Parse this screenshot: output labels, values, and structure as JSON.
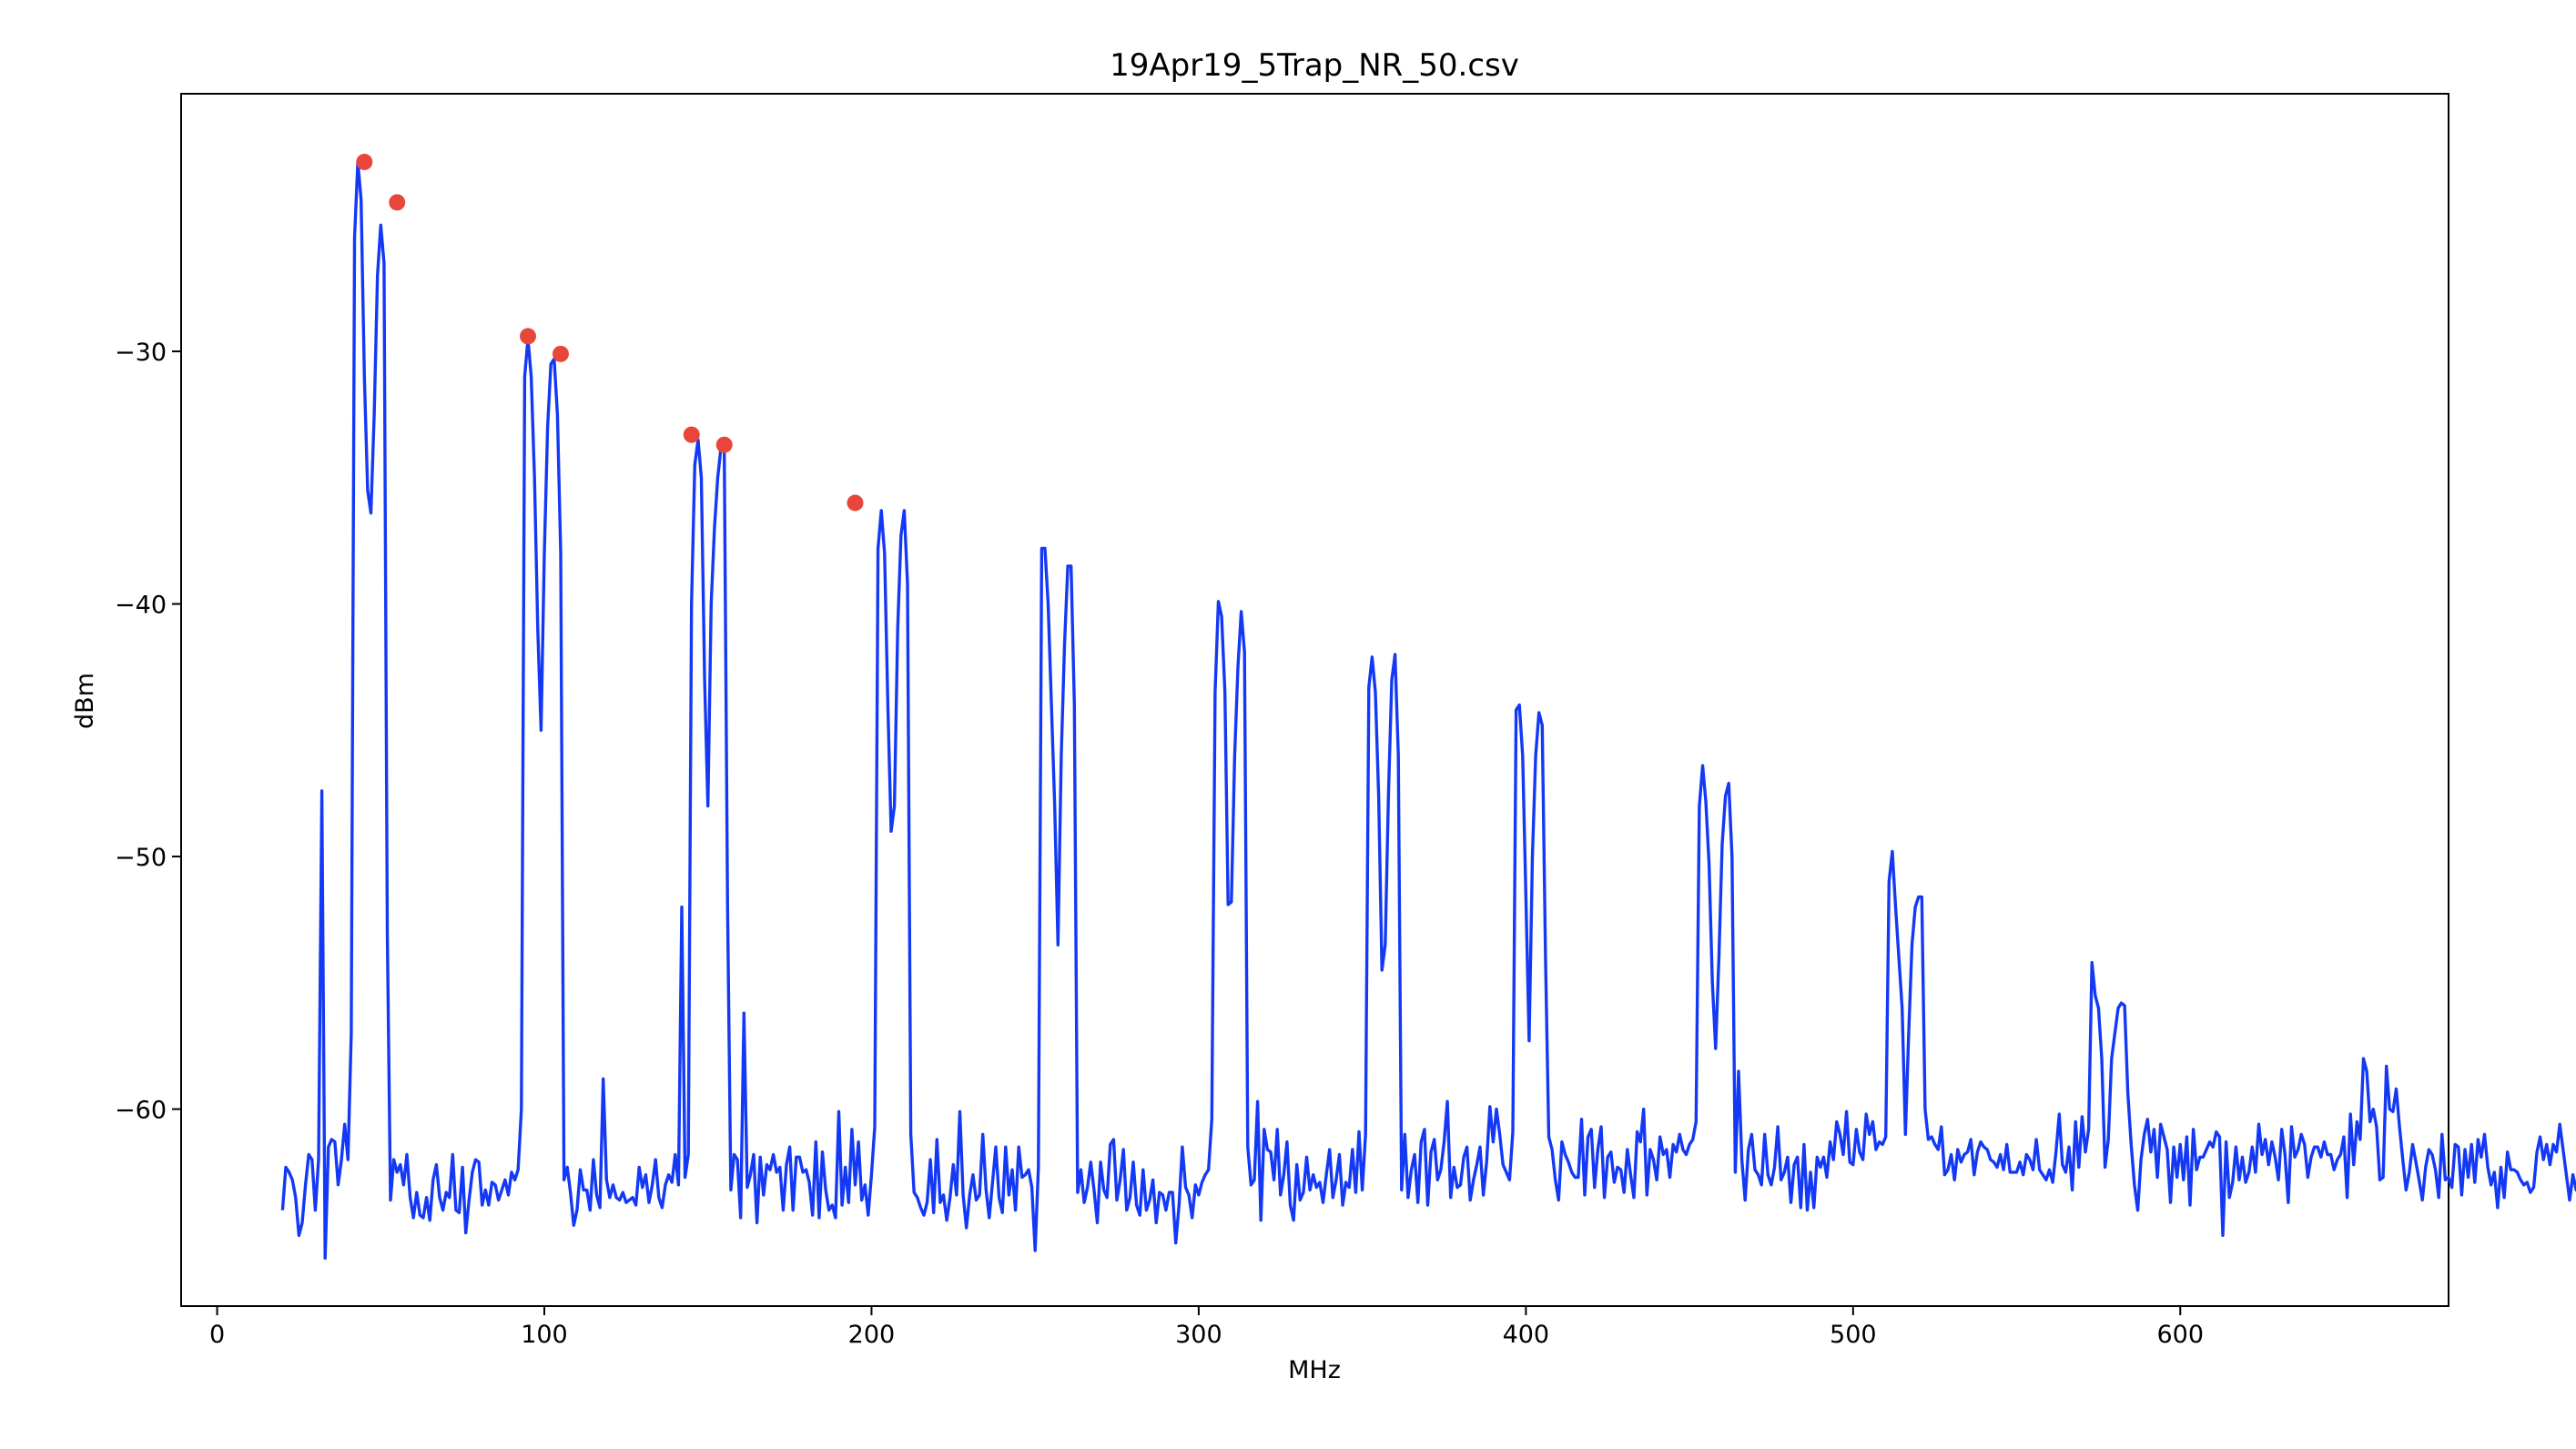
{
  "chart_data": {
    "type": "line",
    "title": "19Apr19_5Trap_NR_50.csv",
    "xlabel": "MHz",
    "ylabel": "dBm",
    "xlim": [
      -11,
      682
    ],
    "ylim": [
      -67.8,
      -19.8
    ],
    "xticks": [
      0,
      100,
      200,
      300,
      400,
      500,
      600
    ],
    "xtick_labels": [
      "0",
      "100",
      "200",
      "300",
      "400",
      "500",
      "600"
    ],
    "yticks": [
      -30,
      -40,
      -50,
      -60
    ],
    "ytick_labels": [
      "−30",
      "−40",
      "−50",
      "−60"
    ],
    "grid": false,
    "legend": false,
    "colors": {
      "line": "#1439f5",
      "markers": "#e8463a"
    },
    "series": [
      {
        "type": "line",
        "x_start": 20,
        "x_step": 1,
        "values": [
          -64,
          -62.3,
          -62.5,
          -62.8,
          -63.5,
          -65,
          -64.5,
          -63,
          -61.8,
          -62,
          -64,
          -62,
          -47.4,
          -65.9,
          -61.5,
          -61.2,
          -61.3,
          -63,
          -62,
          -60.6,
          -62,
          -57,
          -25.5,
          -22.5,
          -24,
          -31,
          -35.5,
          -36.4,
          -32.5,
          -27,
          -25,
          -26.5,
          -53,
          -63.6,
          -62,
          -62.5,
          -62.2,
          -63,
          -61.8,
          -63.5,
          -64.3,
          -63.3,
          -64.2,
          -64.3,
          -63.5,
          -64.4,
          -62.8,
          -62.2,
          -63.5,
          -64,
          -63.3,
          -63.5,
          -61.8,
          -64,
          -64.1,
          -62.3,
          -64.9,
          -63.6,
          -62.5,
          -62,
          -62.1,
          -63.8,
          -63.2,
          -63.8,
          -62.9,
          -63,
          -63.6,
          -63.2,
          -62.8,
          -63.4,
          -62.5,
          -62.8,
          -62.4,
          -60,
          -31,
          -29.5,
          -31,
          -35,
          -41,
          -45,
          -38,
          -33,
          -30.5,
          -30.3,
          -32.5,
          -38,
          -62.8,
          -62.3,
          -63.3,
          -64.6,
          -64,
          -62.4,
          -63.2,
          -63.2,
          -64,
          -62,
          -63.4,
          -63.9,
          -58.8,
          -62.8,
          -63.5,
          -63,
          -63.5,
          -63.6,
          -63.3,
          -63.7,
          -63.6,
          -63.5,
          -63.8,
          -62.3,
          -63.1,
          -62.6,
          -63.7,
          -63,
          -62,
          -63.5,
          -63.9,
          -63,
          -62.6,
          -62.9,
          -61.8,
          -63,
          -52,
          -62.7,
          -61.8,
          -40,
          -34.5,
          -33.5,
          -35,
          -43,
          -48,
          -40,
          -37,
          -35,
          -33.8,
          -34,
          -52,
          -63.2,
          -61.8,
          -62,
          -64.3,
          -56.2,
          -63.1,
          -62.6,
          -61.8,
          -64.5,
          -61.9,
          -63.4,
          -62.2,
          -62.4,
          -61.8,
          -62.5,
          -62.3,
          -64,
          -62.2,
          -61.5,
          -64,
          -61.9,
          -61.9,
          -62.5,
          -62.4,
          -62.9,
          -64.2,
          -61.3,
          -64.3,
          -61.7,
          -63.2,
          -64,
          -63.8,
          -64.3,
          -60.1,
          -63.8,
          -62.3,
          -63.7,
          -60.8,
          -63,
          -61.3,
          -63.6,
          -63,
          -64.2,
          -62.6,
          -60.7,
          -37.8,
          -36.3,
          -38,
          -44,
          -49,
          -48,
          -41,
          -37.3,
          -36.3,
          -39.2,
          -61,
          -63.3,
          -63.5,
          -63.9,
          -64.2,
          -63.7,
          -62,
          -64.1,
          -61.2,
          -63.7,
          -63.4,
          -64.4,
          -63.5,
          -62.2,
          -63.4,
          -60.1,
          -63.4,
          -64.7,
          -63.4,
          -62.6,
          -63.6,
          -63.4,
          -61,
          -63.2,
          -64.3,
          -62.9,
          -61.5,
          -63.5,
          -64.1,
          -61.5,
          -63.4,
          -62.4,
          -64,
          -61.5,
          -62.7,
          -62.6,
          -62.4,
          -63.1,
          -65.6,
          -62.3,
          -37.8,
          -37.8,
          -40,
          -44,
          -48,
          -53.5,
          -46,
          -41.6,
          -38.5,
          -38.5,
          -44,
          -63.3,
          -62.4,
          -63.7,
          -63.1,
          -62.1,
          -63.2,
          -64.5,
          -62.1,
          -63.2,
          -63.5,
          -61.4,
          -61.2,
          -63.6,
          -62.8,
          -61.6,
          -64,
          -63.5,
          -62.1,
          -63.8,
          -64.2,
          -62.4,
          -64,
          -63.6,
          -62.8,
          -64.5,
          -63.3,
          -63.4,
          -64,
          -63.3,
          -63.3,
          -65.3,
          -63.8,
          -61.5,
          -63.1,
          -63.4,
          -64.3,
          -63,
          -63.4,
          -62.9,
          -62.6,
          -62.4,
          -60.4,
          -43.5,
          -39.9,
          -40.5,
          -43.5,
          -51.9,
          -51.8,
          -46,
          -42.5,
          -40.3,
          -41.9,
          -61.5,
          -63,
          -62.8,
          -59.7,
          -64.4,
          -60.8,
          -61.6,
          -61.7,
          -62.8,
          -60.8,
          -63.4,
          -62.6,
          -61.3,
          -63.8,
          -64.4,
          -62.2,
          -63.6,
          -63.3,
          -61.9,
          -63.2,
          -62.6,
          -63.1,
          -62.9,
          -63.7,
          -62.6,
          -61.6,
          -63.5,
          -62.8,
          -61.8,
          -63.8,
          -62.9,
          -63.1,
          -61.6,
          -63.3,
          -60.9,
          -63.2,
          -61,
          -43.3,
          -42.1,
          -43.5,
          -47.6,
          -54.5,
          -53.5,
          -47.5,
          -43,
          -42,
          -46,
          -63.2,
          -61,
          -63.5,
          -62.4,
          -61.8,
          -63.7,
          -61.3,
          -60.8,
          -63.8,
          -61.7,
          -61.2,
          -62.8,
          -62.4,
          -61.3,
          -59.7,
          -63.5,
          -62.3,
          -63.1,
          -63,
          -61.9,
          -61.5,
          -63.6,
          -62.8,
          -62.2,
          -61.5,
          -63.4,
          -62.1,
          -59.9,
          -61.3,
          -60,
          -61,
          -62.2,
          -62.5,
          -62.8,
          -60.9,
          -44.2,
          -44,
          -46,
          -51.5,
          -57.3,
          -50,
          -46,
          -44.3,
          -44.8,
          -54,
          -61.1,
          -61.6,
          -62.8,
          -63.6,
          -61.3,
          -61.8,
          -62.1,
          -62.5,
          -62.7,
          -62.7,
          -60.4,
          -63.4,
          -61.1,
          -60.8,
          -63.1,
          -61.6,
          -60.7,
          -63.5,
          -61.9,
          -61.7,
          -62.9,
          -62.3,
          -62.4,
          -63.3,
          -61.6,
          -62.6,
          -63.5,
          -60.9,
          -61.3,
          -60,
          -63.4,
          -61.6,
          -62,
          -62.8,
          -61.1,
          -61.8,
          -61.6,
          -62.7,
          -61.4,
          -61.7,
          -61,
          -61.6,
          -61.8,
          -61.4,
          -61.2,
          -60.5,
          -48,
          -46.4,
          -47.8,
          -50.3,
          -55,
          -57.6,
          -54,
          -49.5,
          -47.6,
          -47.1,
          -50,
          -62.5,
          -58.5,
          -62,
          -63.6,
          -61.6,
          -61,
          -62.4,
          -62.6,
          -63,
          -61,
          -62.6,
          -63,
          -62.3,
          -60.7,
          -62.8,
          -62.5,
          -61.9,
          -63.7,
          -62.2,
          -61.9,
          -63.9,
          -61.4,
          -64,
          -62.5,
          -63.9,
          -61.9,
          -62.3,
          -61.9,
          -62.7,
          -61.3,
          -62,
          -60.5,
          -61,
          -61.8,
          -60.1,
          -62.1,
          -62.2,
          -60.8,
          -61.7,
          -62,
          -60.2,
          -61,
          -60.5,
          -61.6,
          -61.3,
          -61.4,
          -61.1,
          -51,
          -49.8,
          -52,
          -54,
          -56,
          -61,
          -57,
          -53.5,
          -52,
          -51.6,
          -51.6,
          -60,
          -61.2,
          -61.1,
          -61.4,
          -61.6,
          -60.7,
          -62.6,
          -62.4,
          -61.8,
          -62.8,
          -61.6,
          -62.1,
          -61.8,
          -61.7,
          -61.2,
          -62.6,
          -61.7,
          -61.3,
          -61.5,
          -61.6,
          -62,
          -62.1,
          -62.3,
          -61.8,
          -62.4,
          -61.4,
          -62.5,
          -62.5,
          -62.5,
          -62.1,
          -62.6,
          -61.8,
          -62,
          -62.4,
          -61.2,
          -62.4,
          -62.6,
          -62.8,
          -62.4,
          -62.9,
          -61.7,
          -60.2,
          -62.2,
          -62.5,
          -61.5,
          -63.2,
          -60.5,
          -62.3,
          -60.3,
          -61.7,
          -60.8,
          -54.2,
          -55.5,
          -56,
          -58,
          -62.3,
          -61.2,
          -58,
          -57,
          -56,
          -55.8,
          -55.9,
          -59.4,
          -61.4,
          -63,
          -64,
          -62,
          -61,
          -60.4,
          -61.7,
          -60.8,
          -62.7,
          -60.6,
          -61.1,
          -61.6,
          -63.7,
          -61.5,
          -62.7,
          -61.4,
          -62.8,
          -61.1,
          -63.8,
          -60.8,
          -62.4,
          -61.9,
          -61.9,
          -61.6,
          -61.3,
          -61.5,
          -60.9,
          -61.1,
          -65,
          -61.3,
          -63.5,
          -62.9,
          -61.5,
          -62.8,
          -61.9,
          -62.9,
          -62.5,
          -61.5,
          -62.5,
          -60.6,
          -61.8,
          -61.2,
          -62.2,
          -61.3,
          -61.9,
          -62.8,
          -60.8,
          -61.8,
          -63.7,
          -60.7,
          -61.9,
          -61.6,
          -61,
          -61.4,
          -62.7,
          -61.9,
          -61.5,
          -61.5,
          -61.9,
          -61.3,
          -61.8,
          -61.8,
          -62.4,
          -62,
          -61.8,
          -61.1,
          -63.5,
          -60.2,
          -62.2,
          -60.5,
          -61.2,
          -58,
          -58.5,
          -60.5,
          -60,
          -60.7,
          -62.8,
          -62.7,
          -58.3,
          -60,
          -60.1,
          -59.2,
          -60.7,
          -62,
          -63.2,
          -62.5,
          -61.4,
          -62.1,
          -62.8,
          -63.6,
          -62.3,
          -61.6,
          -61.8,
          -62.4,
          -63.5,
          -61,
          -62.8,
          -62.7,
          -63.1,
          -61.4,
          -61.5,
          -63.4,
          -61.6,
          -62.7,
          -61.4,
          -62.9,
          -61.2,
          -61.9,
          -61,
          -62.3,
          -63,
          -62.5,
          -63.9,
          -62.3,
          -63.5,
          -61.7,
          -62.4,
          -62.4,
          -62.5,
          -62.8,
          -63,
          -62.9,
          -63.3,
          -63.1,
          -61.7,
          -61.1,
          -62,
          -61.4,
          -62.2,
          -61.4,
          -61.7,
          -60.6,
          -61.6,
          -62.6,
          -63.6,
          -62.6,
          -63.2,
          -62.9,
          -62.3,
          -62.3,
          -62.7,
          -63.4,
          -63.2,
          -62.9,
          -63.2,
          -61.9,
          -62.3,
          -61.9,
          -61.6,
          -60,
          -60.6,
          -61.5,
          -60.4,
          -61.7,
          -60.8,
          -61
        ]
      },
      {
        "type": "scatter",
        "name": "peaks",
        "points": [
          {
            "x": 45,
            "y": -22.5
          },
          {
            "x": 55,
            "y": -24.1
          },
          {
            "x": 95,
            "y": -29.4
          },
          {
            "x": 105,
            "y": -30.1
          },
          {
            "x": 145,
            "y": -33.3
          },
          {
            "x": 155,
            "y": -33.7
          },
          {
            "x": 195,
            "y": -36
          }
        ]
      }
    ]
  }
}
